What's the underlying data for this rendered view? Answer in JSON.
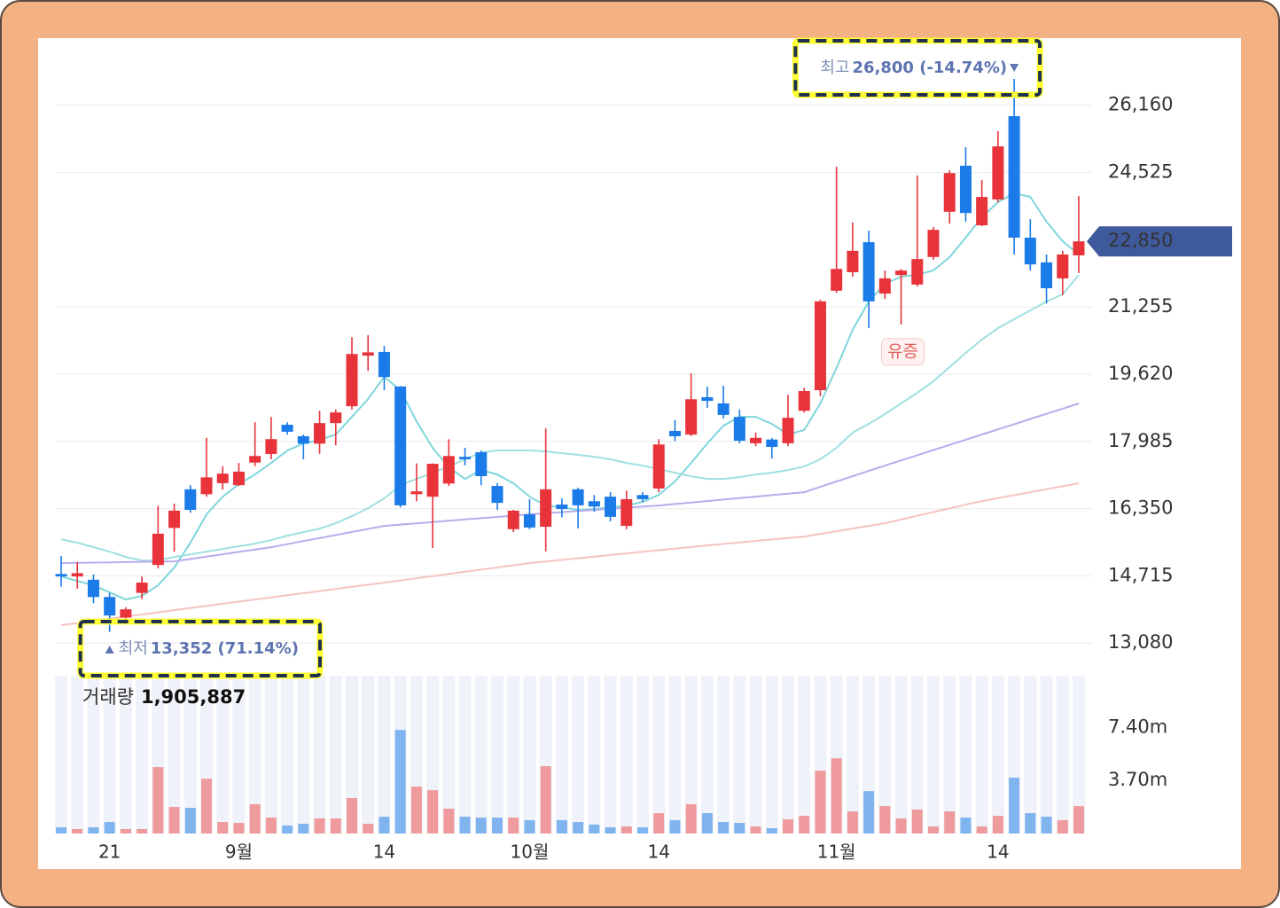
{
  "chart_data": [
    {
      "type": "candlestick",
      "categories": [
        null,
        null,
        null,
        "21",
        null,
        null,
        null,
        null,
        null,
        null,
        null,
        "9월",
        null,
        null,
        null,
        null,
        null,
        null,
        null,
        null,
        "14",
        null,
        null,
        null,
        null,
        null,
        null,
        null,
        null,
        "10월",
        null,
        null,
        null,
        null,
        null,
        null,
        null,
        "14",
        null,
        null,
        null,
        null,
        null,
        null,
        null,
        null,
        null,
        null,
        "11월",
        null,
        null,
        null,
        null,
        null,
        null,
        null,
        null,
        null,
        "14",
        null,
        null,
        null,
        null,
        null
      ],
      "open": [
        14760,
        14700,
        14620,
        14200,
        13700,
        14300,
        14980,
        15880,
        16820,
        16700,
        16970,
        16920,
        17470,
        17680,
        18390,
        18110,
        17930,
        18430,
        18840,
        20070,
        20160,
        19320,
        16700,
        16640,
        16960,
        17610,
        17720,
        16900,
        15850,
        16210,
        15910,
        16450,
        16820,
        16530,
        16640,
        15930,
        16680,
        16840,
        18240,
        18150,
        19060,
        18910,
        18580,
        17940,
        18030,
        17940,
        18730,
        19230,
        21650,
        22100,
        22830,
        21580,
        22030,
        21800,
        22470,
        23570,
        24690,
        23240,
        23870,
        25895,
        22940,
        22340,
        21950,
        22510
      ],
      "high": [
        15200,
        15050,
        14750,
        14300,
        13950,
        14700,
        16420,
        16470,
        16920,
        18070,
        17380,
        17460,
        18450,
        18580,
        18450,
        18150,
        18730,
        18760,
        20520,
        20570,
        20310,
        19330,
        17450,
        17450,
        18040,
        17830,
        17760,
        16970,
        16320,
        16580,
        18300,
        16600,
        16860,
        16680,
        16750,
        16790,
        16750,
        18040,
        18500,
        19640,
        19320,
        19340,
        18760,
        18200,
        18070,
        19120,
        19290,
        21430,
        24670,
        23310,
        23110,
        22140,
        22180,
        24450,
        23200,
        24580,
        25140,
        24340,
        25530,
        26800,
        23390,
        22530,
        22620,
        23950
      ],
      "low": [
        14450,
        14400,
        14050,
        13352,
        13620,
        14150,
        14900,
        15300,
        16250,
        16640,
        16810,
        16900,
        17380,
        17550,
        18150,
        17550,
        17680,
        17890,
        18760,
        19700,
        19230,
        16380,
        16530,
        15390,
        16900,
        17400,
        16920,
        16320,
        15780,
        15850,
        15310,
        16140,
        15870,
        16270,
        16040,
        15850,
        16510,
        16750,
        17990,
        18110,
        18800,
        18540,
        17940,
        17870,
        17570,
        17870,
        18690,
        19080,
        21600,
        21990,
        20740,
        21450,
        20830,
        21750,
        22400,
        23280,
        23330,
        23220,
        23800,
        22530,
        22140,
        21340,
        21540,
        22080
      ],
      "close": [
        14700,
        14780,
        14200,
        13750,
        13900,
        14550,
        15740,
        16300,
        16320,
        17110,
        17200,
        17250,
        17630,
        18040,
        18220,
        17930,
        18430,
        18690,
        20110,
        20150,
        19550,
        16430,
        16770,
        17440,
        17630,
        17550,
        17140,
        16490,
        16300,
        15890,
        16820,
        16340,
        16430,
        16400,
        16150,
        16580,
        16580,
        17910,
        18110,
        19010,
        18970,
        18630,
        18000,
        18070,
        17850,
        18560,
        19210,
        21390,
        22180,
        22620,
        21390,
        21950,
        22140,
        22420,
        23130,
        24510,
        23540,
        23930,
        25160,
        22940,
        22290,
        21710,
        22530,
        22850
      ],
      "colors": {
        "up": "#e8333a",
        "down": "#1b7be8"
      },
      "ma": [
        {
          "color": "#7fd6da",
          "values": [
            14700,
            14593,
            14485,
            14312,
            14140,
            14226,
            14485,
            14916,
            15520,
            16211,
            16642,
            16944,
            17181,
            17461,
            17763,
            17936,
            18022,
            18152,
            18583,
            19015,
            19554,
            19230,
            18475,
            17828,
            17354,
            17073,
            17289,
            17181,
            16965,
            16642,
            16426,
            16383,
            16318,
            16340,
            16383,
            16426,
            16513,
            16685,
            17009,
            17461,
            17936,
            18367,
            18583,
            18583,
            18410,
            18152,
            18260,
            18907,
            19770,
            20697,
            21387,
            21817,
            21991,
            22034,
            22142,
            22466,
            22940,
            23436,
            23803,
            24019,
            23933,
            23329,
            22854,
            22530
          ]
        },
        {
          "color": "#9fe0e0",
          "values": [
            15606,
            15520,
            15413,
            15305,
            15175,
            15089,
            15089,
            15175,
            15240,
            15305,
            15369,
            15434,
            15499,
            15585,
            15693,
            15779,
            15865,
            15995,
            16167,
            16361,
            16599,
            16922,
            17073,
            17224,
            17375,
            17548,
            17720,
            17764,
            17764,
            17764,
            17742,
            17699,
            17656,
            17612,
            17548,
            17461,
            17397,
            17311,
            17224,
            17138,
            17073,
            17073,
            17116,
            17181,
            17224,
            17289,
            17375,
            17548,
            17828,
            18195,
            18411,
            18648,
            18907,
            19166,
            19446,
            19791,
            20136,
            20460,
            20740,
            20956,
            21171,
            21387,
            21560,
            22034
          ]
        },
        {
          "color": "#b9acec",
          "values": [
            15024,
            15030,
            15036,
            15042,
            15049,
            15055,
            15061,
            15067,
            15125,
            15182,
            15240,
            15297,
            15355,
            15412,
            15486,
            15560,
            15634,
            15708,
            15782,
            15856,
            15930,
            15961,
            15992,
            16023,
            16054,
            16086,
            16117,
            16148,
            16179,
            16210,
            16237,
            16264,
            16291,
            16318,
            16345,
            16372,
            16399,
            16426,
            16462,
            16498,
            16534,
            16570,
            16606,
            16642,
            16678,
            16714,
            16750,
            16879,
            17009,
            17138,
            17268,
            17397,
            17523,
            17649,
            17775,
            17900,
            18026,
            18152,
            18278,
            18404,
            18530,
            18655,
            18781,
            18907
          ]
        },
        {
          "color": "#f7c2c2",
          "values": [
            13514,
            13566,
            13619,
            13671,
            13724,
            13776,
            13829,
            13881,
            13933,
            13984,
            14036,
            14087,
            14139,
            14190,
            14242,
            14293,
            14345,
            14396,
            14448,
            14499,
            14550,
            14603,
            14656,
            14709,
            14761,
            14814,
            14867,
            14920,
            14972,
            15025,
            15064,
            15103,
            15142,
            15182,
            15221,
            15260,
            15299,
            15338,
            15378,
            15417,
            15456,
            15492,
            15528,
            15564,
            15599,
            15635,
            15671,
            15736,
            15801,
            15866,
            15930,
            15995,
            16085,
            16175,
            16265,
            16354,
            16444,
            16534,
            16606,
            16678,
            16750,
            16822,
            16894,
            16966
          ]
        }
      ],
      "events": [
        null,
        null,
        null,
        null,
        null,
        null,
        null,
        null,
        null,
        null,
        null,
        null,
        null,
        null,
        null,
        null,
        null,
        null,
        null,
        null,
        null,
        null,
        null,
        null,
        null,
        null,
        null,
        null,
        null,
        null,
        null,
        null,
        null,
        null,
        null,
        null,
        null,
        null,
        null,
        null,
        null,
        null,
        null,
        null,
        null,
        null,
        null,
        null,
        null,
        null,
        null,
        null,
        "유증",
        null,
        null,
        null,
        null,
        null,
        null,
        null,
        null,
        null,
        null,
        null
      ],
      "high_label": "최고",
      "high_text": "26,800 (-14.74%)",
      "low_label": "최저",
      "low_text": "13,352 (71.14%)",
      "last_price": {
        "value": 22850,
        "label": "22,850"
      },
      "ylim": [
        12330,
        27750
      ],
      "yticks": [
        {
          "value": 13080,
          "label": "13,080"
        },
        {
          "value": 14715,
          "label": "14,715"
        },
        {
          "value": 16350,
          "label": "16,350"
        },
        {
          "value": 17985,
          "label": "17,985"
        },
        {
          "value": 19620,
          "label": "19,620"
        },
        {
          "value": 21255,
          "label": "21,255"
        },
        {
          "value": 24525,
          "label": "24,525"
        },
        {
          "value": 26160,
          "label": "26,160"
        }
      ],
      "grid": true
    },
    {
      "type": "bar",
      "label": "거래량",
      "current": {
        "value": 1905887,
        "label": "1,905,887"
      },
      "values": [
        430000,
        310000,
        430000,
        800000,
        310000,
        310000,
        4630000,
        1850000,
        1790000,
        3820000,
        800000,
        740000,
        2040000,
        1110000,
        560000,
        680000,
        1050000,
        1050000,
        2470000,
        680000,
        1170000,
        7220000,
        3270000,
        3020000,
        1730000,
        1170000,
        1110000,
        1110000,
        1110000,
        930000,
        4690000,
        930000,
        800000,
        620000,
        430000,
        490000,
        430000,
        1420000,
        930000,
        2040000,
        1420000,
        800000,
        740000,
        490000,
        370000,
        990000,
        1230000,
        4380000,
        5240000,
        1540000,
        2960000,
        1910000,
        1050000,
        1670000,
        490000,
        1540000,
        1110000,
        490000,
        1230000,
        3890000,
        1420000,
        1170000,
        930000,
        1905887
      ],
      "colors": {
        "up": "#ef9a9c",
        "down": "#7fb4ef"
      },
      "ylim": [
        0,
        11000000
      ],
      "yticks": [
        {
          "value": 3700000,
          "label": "3.70m"
        },
        {
          "value": 7400000,
          "label": "7.40m"
        }
      ]
    }
  ]
}
